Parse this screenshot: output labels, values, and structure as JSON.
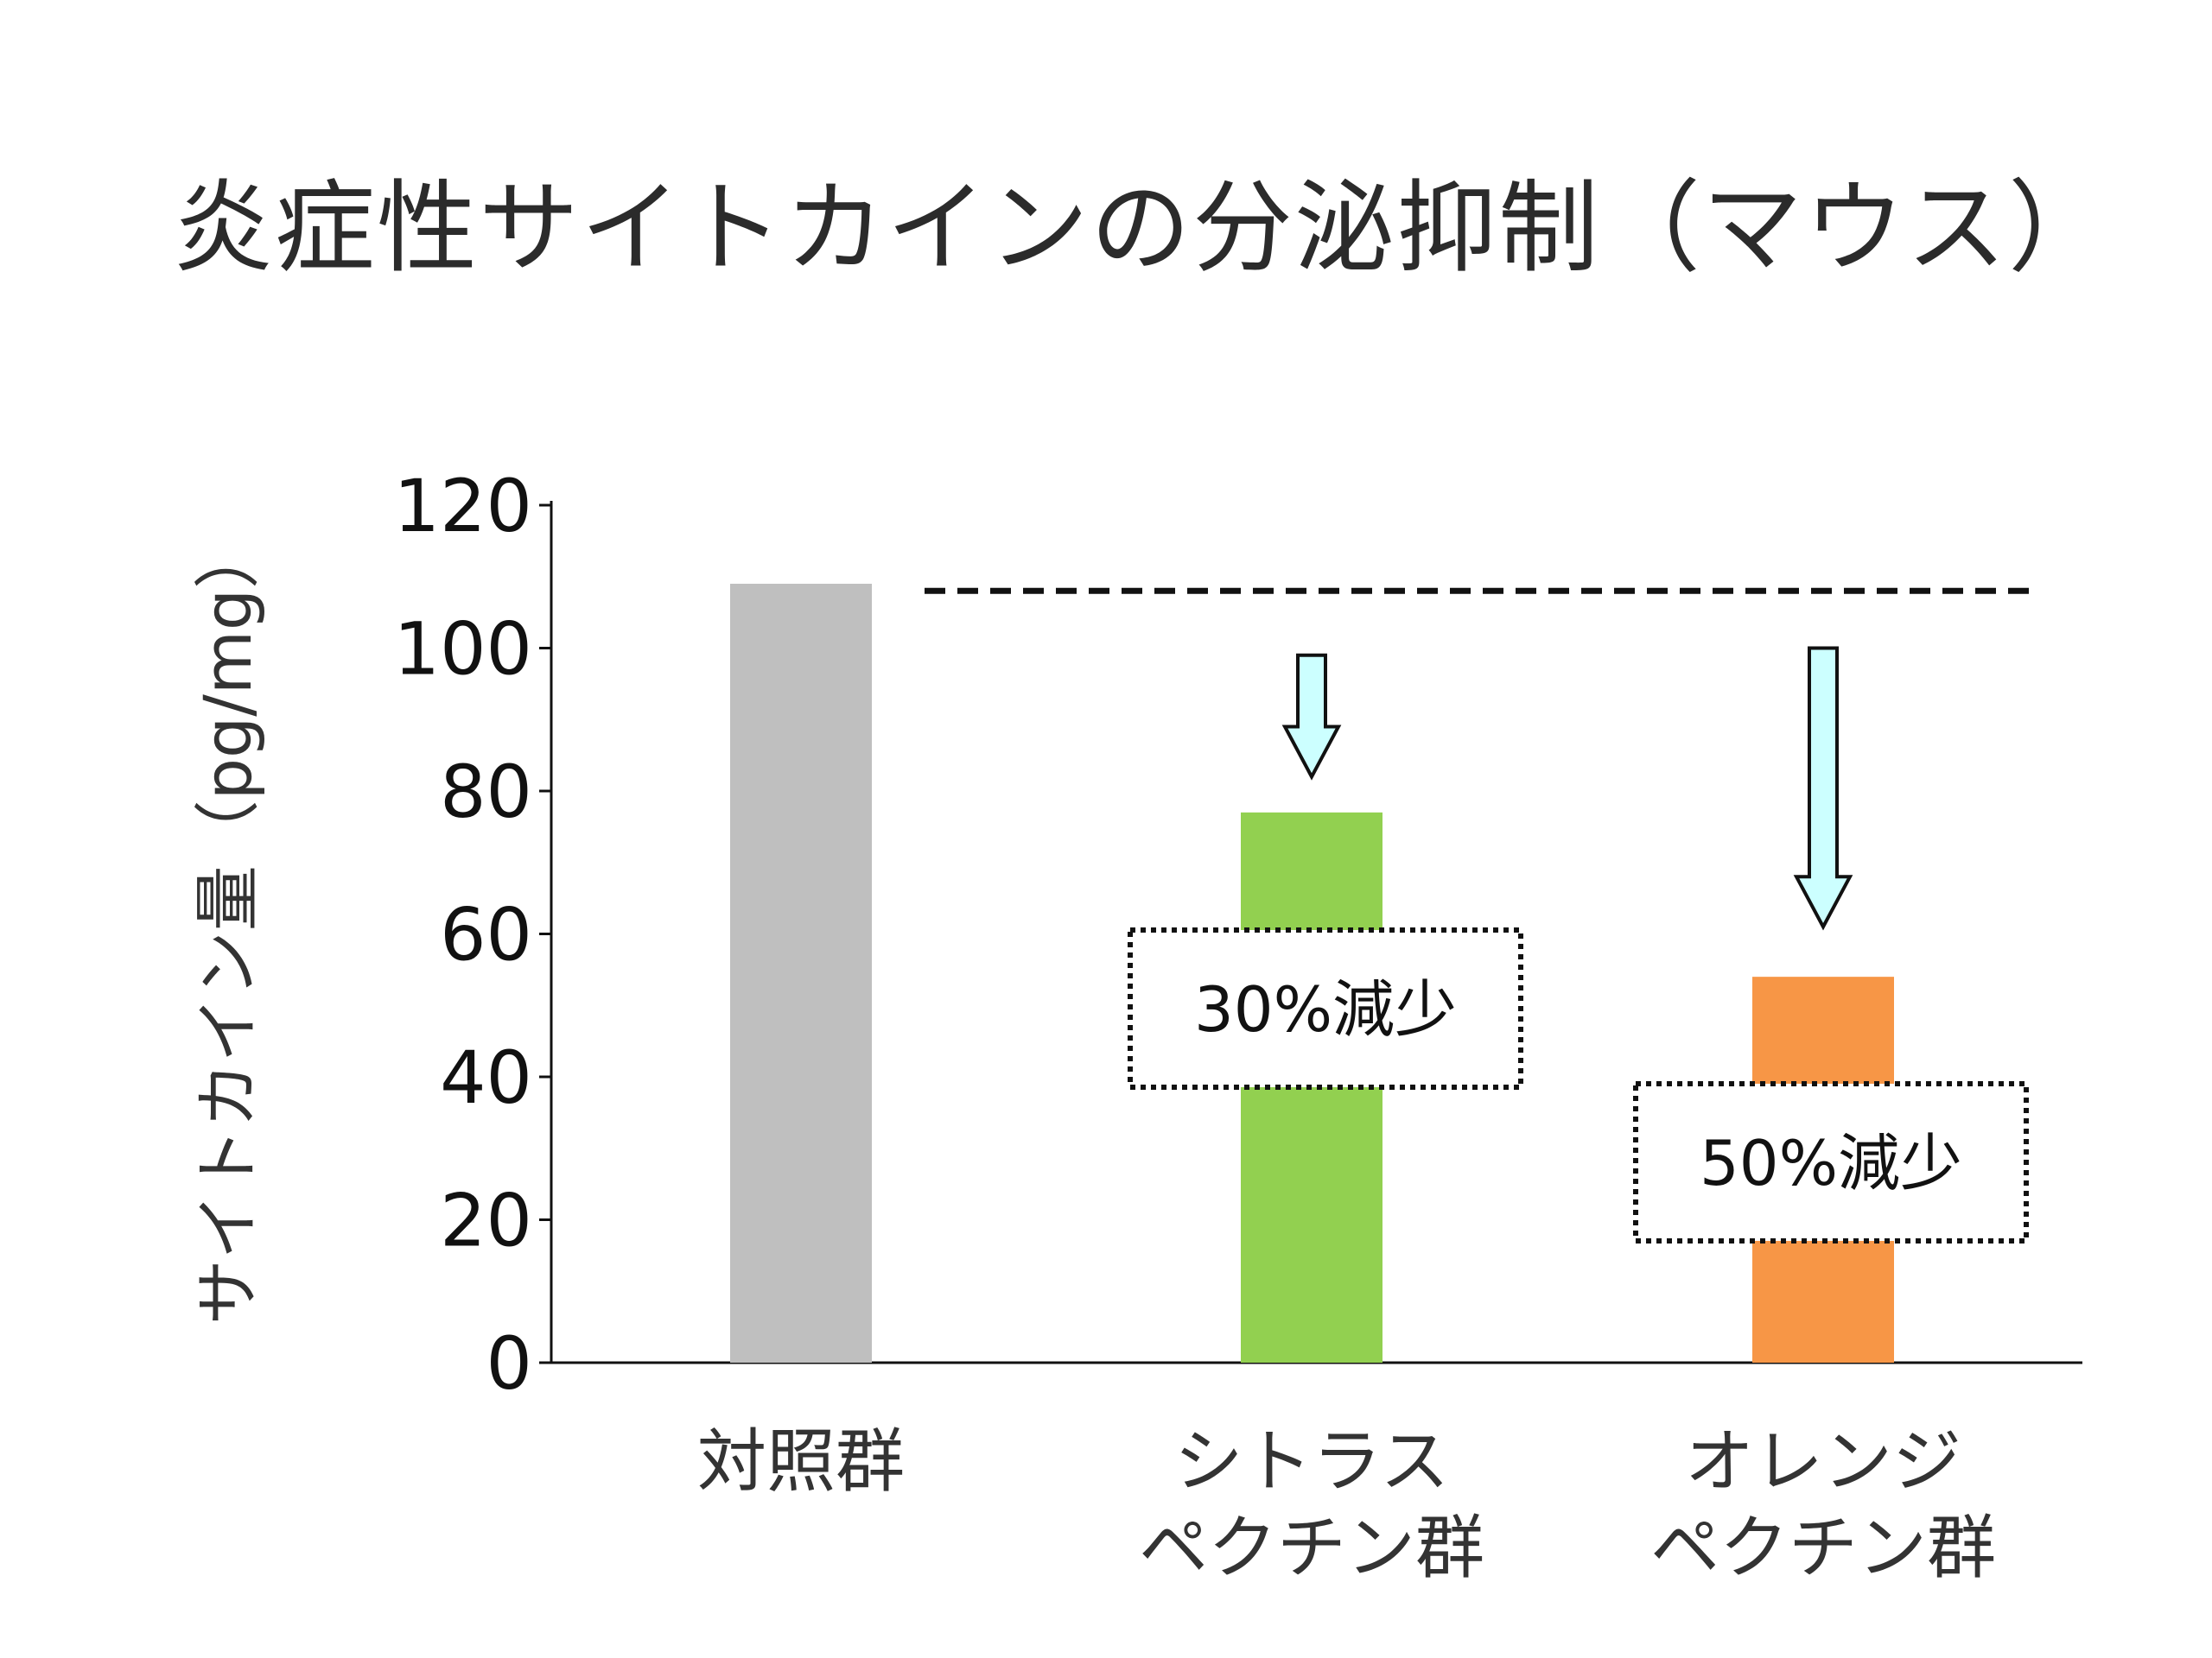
{
  "title": "炎症性サイトカインの分泌抑制（マウス）",
  "chart_data": {
    "type": "bar",
    "ylabel": "サイトカイン量（pg/mg）",
    "ylim": [
      0,
      120
    ],
    "yticks": [
      "0",
      "20",
      "40",
      "60",
      "80",
      "100",
      "120"
    ],
    "categories": [
      [
        "対照群"
      ],
      [
        "シトラス",
        "ペクチン群"
      ],
      [
        "オレンジ",
        "ペクチン群"
      ]
    ],
    "values": [
      109,
      77,
      54
    ],
    "colors": [
      "#bfbfbf",
      "#92d050",
      "#f79646"
    ],
    "reference_line": 108,
    "annotations": [
      {
        "category_index": 1,
        "text": "30%減少"
      },
      {
        "category_index": 2,
        "text": "50%減少"
      }
    ],
    "arrow_color": "#ccffff"
  }
}
